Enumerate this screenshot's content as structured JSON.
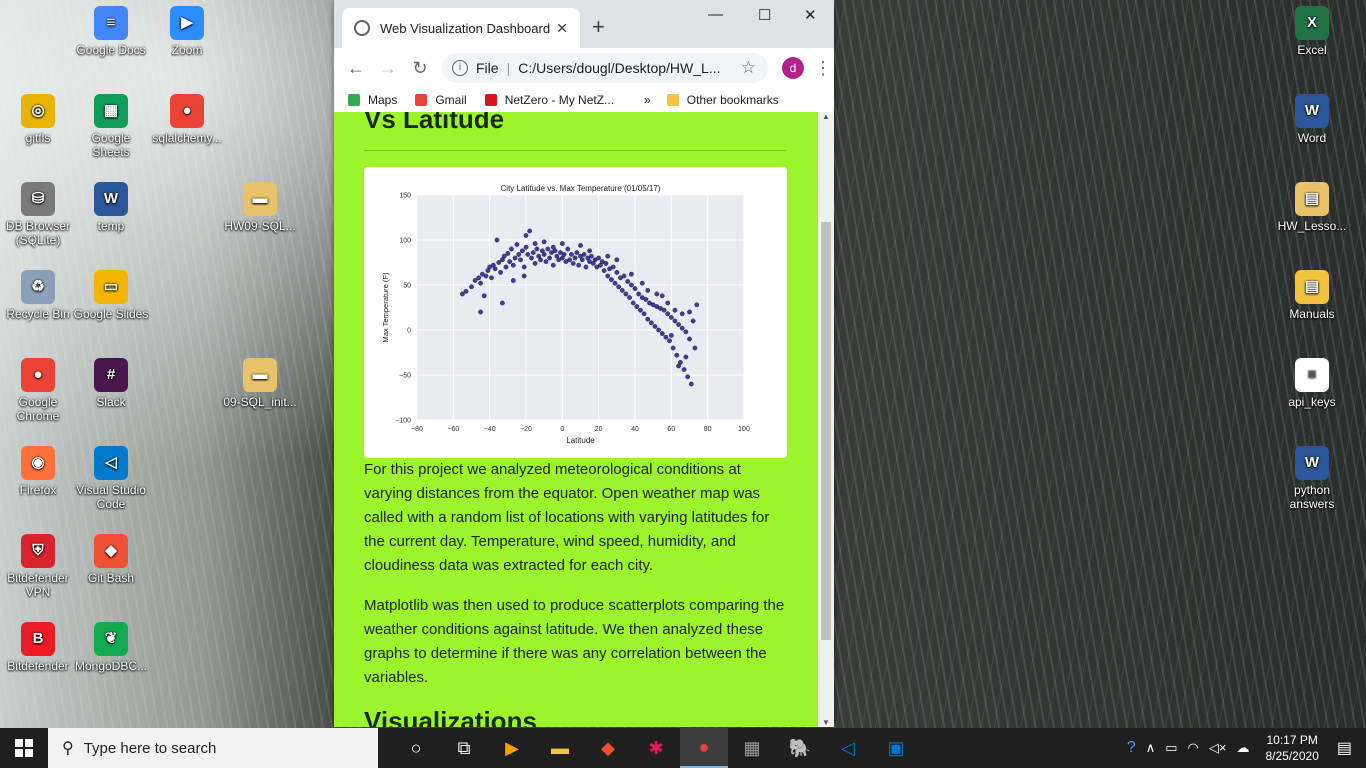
{
  "desktop": {
    "left_icons": [
      {
        "label": "Google Docs",
        "color": "#4285f4",
        "glyph": "≡"
      },
      {
        "label": "Zoom",
        "color": "#2d8cff",
        "glyph": "▶"
      },
      {
        "label": "gitfls",
        "color": "#e8b400",
        "glyph": "◎"
      },
      {
        "label": "Google Sheets",
        "color": "#0f9d58",
        "glyph": "▦"
      },
      {
        "label": "sqlalchemy...",
        "color": "#ea4335",
        "glyph": "●"
      },
      {
        "label": "DB Browser (SQLite)",
        "color": "#7a7a7a",
        "glyph": "⛁"
      },
      {
        "label": "temp",
        "color": "#2b579a",
        "glyph": "W"
      },
      {
        "label": "HW09-SQL...",
        "color": "#e8c36a",
        "glyph": "▬"
      },
      {
        "label": "Recycle Bin",
        "color": "#8aa0b8",
        "glyph": "♻"
      },
      {
        "label": "Google Slides",
        "color": "#f4b400",
        "glyph": "▭"
      },
      {
        "label": "Google Chrome",
        "color": "#ea4335",
        "glyph": "●"
      },
      {
        "label": "Slack",
        "color": "#4a154b",
        "glyph": "#"
      },
      {
        "label": "09-SQL_init...",
        "color": "#e8c36a",
        "glyph": "▬"
      },
      {
        "label": "Firefox",
        "color": "#ff7139",
        "glyph": "◉"
      },
      {
        "label": "Visual Studio Code",
        "color": "#007acc",
        "glyph": "◁"
      },
      {
        "label": "Bitdefender VPN",
        "color": "#d9232d",
        "glyph": "⛨"
      },
      {
        "label": "Git Bash",
        "color": "#f05032",
        "glyph": "◆"
      },
      {
        "label": "Bitdefender",
        "color": "#ed1c24",
        "glyph": "B"
      },
      {
        "label": "MongoDBC...",
        "color": "#13aa52",
        "glyph": "❦"
      }
    ],
    "right_icons": [
      {
        "label": "Excel",
        "color": "#217346",
        "glyph": "X"
      },
      {
        "label": "Word",
        "color": "#2b579a",
        "glyph": "W"
      },
      {
        "label": "HW_Lesso...",
        "color": "#e8c36a",
        "glyph": "▤"
      },
      {
        "label": "Manuals",
        "color": "#f5c342",
        "glyph": "▤"
      },
      {
        "label": "api_keys",
        "color": "#ffffff",
        "glyph": "≡"
      },
      {
        "label": "python answers",
        "color": "#2b579a",
        "glyph": "W"
      }
    ]
  },
  "browser": {
    "tab_title": "Web Visualization Dashboard",
    "tab_close": "✕",
    "new_tab": "+",
    "window_controls": {
      "minimize": "—",
      "maximize": "☐",
      "close": "✕"
    },
    "nav": {
      "back": "←",
      "forward": "→",
      "reload": "↻"
    },
    "address": {
      "scheme_label": "File",
      "url": "C:/Users/dougl/Desktop/HW_L...",
      "star": "☆",
      "profile": "d",
      "menu": "⋮"
    },
    "bookmarks": [
      {
        "label": "Maps",
        "color": "#34a853"
      },
      {
        "label": "Gmail",
        "color": "#ea4335"
      },
      {
        "label": "NetZero - My NetZ...",
        "color": "#d7141a"
      }
    ],
    "bookmarks_overflow": "»",
    "other_bookmarks": "Other bookmarks"
  },
  "page": {
    "heading": "Vs Latitude",
    "paragraph1": "For this project we analyzed meteorological conditions at varying distances from the equator. Open weather map was called with a random list of locations with varying latitudes for the current day. Temperature, wind speed, humidity, and cloudiness data was extracted for each city.",
    "paragraph2": "Matplotlib was then used to produce scatterplots comparing the weather conditions against latitude. We then analyzed these graphs to determine if there was any correlation between the variables.",
    "heading2": "Visualizations",
    "background_color": "#9cf52b"
  },
  "chart_data": {
    "type": "scatter",
    "title": "City Latitude vs. Max Temperature (01/05/17)",
    "xlabel": "Latitude",
    "ylabel": "Max Temperature (F)",
    "xlim": [
      -80,
      100
    ],
    "ylim": [
      -100,
      150
    ],
    "xticks": [
      "−80",
      "−60",
      "−40",
      "−20",
      "0",
      "20",
      "40",
      "60",
      "80",
      "100"
    ],
    "yticks": [
      "150",
      "100",
      "50",
      "0",
      "−50",
      "−100"
    ],
    "grid": true,
    "marker_color": "#1f1f8f",
    "points": [
      [
        -55,
        40
      ],
      [
        -53,
        43
      ],
      [
        -50,
        48
      ],
      [
        -48,
        55
      ],
      [
        -46,
        58
      ],
      [
        -45,
        52
      ],
      [
        -44,
        62
      ],
      [
        -42,
        60
      ],
      [
        -41,
        66
      ],
      [
        -40,
        70
      ],
      [
        -38,
        72
      ],
      [
        -37,
        68
      ],
      [
        -36,
        100
      ],
      [
        -35,
        75
      ],
      [
        -34,
        64
      ],
      [
        -33,
        78
      ],
      [
        -32,
        82
      ],
      [
        -31,
        70
      ],
      [
        -30,
        85
      ],
      [
        -29,
        76
      ],
      [
        -28,
        90
      ],
      [
        -27,
        72
      ],
      [
        -26,
        80
      ],
      [
        -25,
        95
      ],
      [
        -24,
        84
      ],
      [
        -23,
        78
      ],
      [
        -22,
        88
      ],
      [
        -21,
        70
      ],
      [
        -20,
        92
      ],
      [
        -19,
        84
      ],
      [
        -18,
        110
      ],
      [
        -17,
        80
      ],
      [
        -16,
        86
      ],
      [
        -15,
        74
      ],
      [
        -14,
        90
      ],
      [
        -13,
        82
      ],
      [
        -12,
        78
      ],
      [
        -11,
        88
      ],
      [
        -10,
        84
      ],
      [
        -9,
        76
      ],
      [
        -8,
        90
      ],
      [
        -7,
        80
      ],
      [
        -6,
        86
      ],
      [
        -5,
        72
      ],
      [
        -4,
        88
      ],
      [
        -3,
        82
      ],
      [
        -2,
        78
      ],
      [
        -1,
        86
      ],
      [
        0,
        80
      ],
      [
        1,
        84
      ],
      [
        2,
        76
      ],
      [
        3,
        90
      ],
      [
        4,
        78
      ],
      [
        5,
        84
      ],
      [
        6,
        74
      ],
      [
        7,
        80
      ],
      [
        8,
        86
      ],
      [
        9,
        72
      ],
      [
        10,
        82
      ],
      [
        11,
        78
      ],
      [
        12,
        84
      ],
      [
        13,
        70
      ],
      [
        14,
        80
      ],
      [
        15,
        76
      ],
      [
        16,
        82
      ],
      [
        17,
        74
      ],
      [
        18,
        78
      ],
      [
        19,
        70
      ],
      [
        20,
        80
      ],
      [
        21,
        72
      ],
      [
        22,
        76
      ],
      [
        23,
        66
      ],
      [
        24,
        74
      ],
      [
        25,
        60
      ],
      [
        26,
        68
      ],
      [
        27,
        56
      ],
      [
        28,
        70
      ],
      [
        29,
        52
      ],
      [
        30,
        64
      ],
      [
        31,
        48
      ],
      [
        32,
        58
      ],
      [
        33,
        44
      ],
      [
        34,
        60
      ],
      [
        35,
        40
      ],
      [
        36,
        54
      ],
      [
        37,
        36
      ],
      [
        38,
        50
      ],
      [
        39,
        30
      ],
      [
        40,
        46
      ],
      [
        41,
        26
      ],
      [
        42,
        40
      ],
      [
        43,
        22
      ],
      [
        44,
        36
      ],
      [
        45,
        18
      ],
      [
        46,
        34
      ],
      [
        47,
        12
      ],
      [
        48,
        30
      ],
      [
        49,
        8
      ],
      [
        50,
        28
      ],
      [
        51,
        4
      ],
      [
        52,
        26
      ],
      [
        53,
        0
      ],
      [
        54,
        24
      ],
      [
        55,
        -4
      ],
      [
        56,
        22
      ],
      [
        57,
        -8
      ],
      [
        58,
        18
      ],
      [
        59,
        -12
      ],
      [
        60,
        14
      ],
      [
        61,
        -20
      ],
      [
        62,
        10
      ],
      [
        63,
        -28
      ],
      [
        64,
        6
      ],
      [
        65,
        -36
      ],
      [
        66,
        2
      ],
      [
        67,
        -44
      ],
      [
        68,
        -2
      ],
      [
        69,
        -52
      ],
      [
        70,
        -10
      ],
      [
        71,
        -60
      ],
      [
        -39,
        58
      ],
      [
        -27,
        55
      ],
      [
        -21,
        60
      ],
      [
        -43,
        38
      ],
      [
        -15,
        96
      ],
      [
        -5,
        92
      ],
      [
        10,
        94
      ],
      [
        25,
        82
      ],
      [
        38,
        62
      ],
      [
        44,
        52
      ],
      [
        52,
        40
      ],
      [
        58,
        30
      ],
      [
        62,
        22
      ],
      [
        66,
        18
      ],
      [
        70,
        20
      ],
      [
        74,
        28
      ],
      [
        72,
        10
      ],
      [
        68,
        -30
      ],
      [
        64,
        -40
      ],
      [
        60,
        -6
      ],
      [
        -33,
        30
      ],
      [
        -45,
        20
      ],
      [
        -20,
        105
      ],
      [
        -10,
        98
      ],
      [
        0,
        96
      ],
      [
        15,
        88
      ],
      [
        30,
        78
      ],
      [
        47,
        44
      ],
      [
        55,
        38
      ],
      [
        73,
        -20
      ]
    ]
  },
  "taskbar": {
    "search_placeholder": "Type here to search",
    "apps": [
      {
        "name": "task-view",
        "glyph": "○",
        "color": "#ffffff"
      },
      {
        "name": "timeline",
        "glyph": "⧉",
        "color": "#ffffff"
      },
      {
        "name": "media-player",
        "glyph": "▶",
        "color": "#f7a000"
      },
      {
        "name": "file-explorer",
        "glyph": "▬",
        "color": "#f5c342"
      },
      {
        "name": "git",
        "glyph": "◆",
        "color": "#f05032"
      },
      {
        "name": "slack",
        "glyph": "✱",
        "color": "#e01e5a"
      },
      {
        "name": "chrome",
        "glyph": "●",
        "color": "#ea4335"
      },
      {
        "name": "calculator",
        "glyph": "▦",
        "color": "#9e9e9e"
      },
      {
        "name": "postgres",
        "glyph": "🐘",
        "color": "#336791"
      },
      {
        "name": "vscode",
        "glyph": "◁",
        "color": "#007acc"
      },
      {
        "name": "photos",
        "glyph": "▣",
        "color": "#0078d7"
      }
    ],
    "time": "10:17 PM",
    "date": "8/25/2020"
  }
}
